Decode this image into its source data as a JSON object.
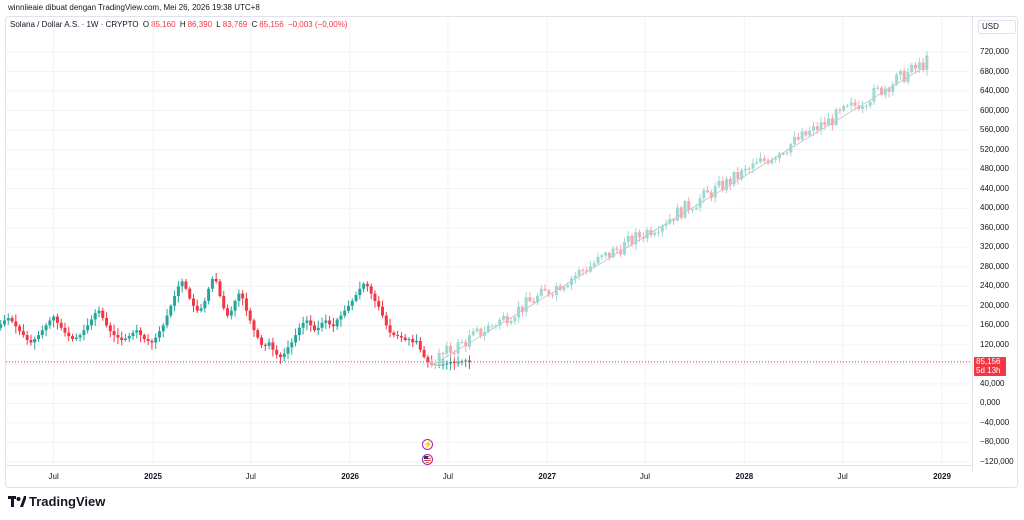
{
  "header": {
    "text": "winniieaie dibuat dengan TradingView.com, Mei 26, 2026 19:38 UTC+8"
  },
  "legend": {
    "symbol": "Solana / Dollar A.S. · 1W · CRYPTO",
    "open_label": "O",
    "open": "85,160",
    "high_label": "H",
    "high": "86,390",
    "low_label": "L",
    "low": "83,769",
    "close_label": "C",
    "close": "85,156",
    "change": "−0,003 (−0,00%)"
  },
  "currency": "USD",
  "price_tag": {
    "price": "85,156",
    "countdown": "5d 13h"
  },
  "colors": {
    "up": "#26a69a",
    "down": "#f23645",
    "projection_up": "#9fd8d2",
    "projection_down": "#f6a8ae",
    "grid": "#f0f3fa"
  },
  "icons": {
    "event_top": "lightning-icon",
    "event_bottom": "us-flag-icon",
    "brand": "tradingview-logo"
  },
  "brand": {
    "name": "TradingView"
  },
  "chart_data": {
    "type": "candlestick",
    "ylim": [
      -120000,
      740000
    ],
    "y_ticks": [
      "720,000",
      "680,000",
      "640,000",
      "600,000",
      "560,000",
      "520,000",
      "480,000",
      "440,000",
      "400,000",
      "360,000",
      "320,000",
      "280,000",
      "240,000",
      "200,000",
      "160,000",
      "120,000",
      "80,000",
      "40,000",
      "0,000",
      "−40,000",
      "−80,000",
      "−120,000"
    ],
    "y_tick_values": [
      720000,
      680000,
      640000,
      600000,
      560000,
      520000,
      480000,
      440000,
      400000,
      360000,
      320000,
      280000,
      240000,
      200000,
      160000,
      120000,
      80000,
      40000,
      0,
      -40000,
      -80000,
      -120000
    ],
    "x_ticks": [
      {
        "label": "Jul",
        "bold": false
      },
      {
        "label": "2025",
        "bold": true
      },
      {
        "label": "Jul",
        "bold": false
      },
      {
        "label": "2026",
        "bold": true
      },
      {
        "label": "Jul",
        "bold": false
      },
      {
        "label": "2027",
        "bold": true
      },
      {
        "label": "Jul",
        "bold": false
      },
      {
        "label": "2028",
        "bold": true
      },
      {
        "label": "Jul",
        "bold": false
      },
      {
        "label": "2029",
        "bold": true
      }
    ],
    "x_tick_dates": [
      "2024-07-01",
      "2025-01-01",
      "2025-07-01",
      "2026-01-01",
      "2026-07-01",
      "2027-01-01",
      "2027-07-01",
      "2028-01-01",
      "2028-07-01",
      "2029-01-01"
    ],
    "historical_start": "2024-02-05",
    "historical_end": "2026-05-25",
    "projection_end": "2028-12-04",
    "historical_closes": [
      160000,
      150000,
      140000,
      135000,
      145000,
      150000,
      155000,
      162000,
      170000,
      175000,
      168000,
      158000,
      148000,
      140000,
      130000,
      125000,
      132000,
      140000,
      150000,
      160000,
      170000,
      178000,
      165000,
      155000,
      145000,
      138000,
      132000,
      135000,
      140000,
      150000,
      160000,
      172000,
      185000,
      190000,
      175000,
      160000,
      148000,
      140000,
      135000,
      130000,
      133000,
      138000,
      145000,
      150000,
      140000,
      132000,
      128000,
      125000,
      135000,
      148000,
      160000,
      180000,
      200000,
      220000,
      240000,
      250000,
      235000,
      215000,
      200000,
      190000,
      195000,
      210000,
      235000,
      255000,
      250000,
      220000,
      195000,
      180000,
      190000,
      210000,
      225000,
      215000,
      190000,
      170000,
      150000,
      135000,
      120000,
      118000,
      125000,
      110000,
      100000,
      95000,
      102000,
      115000,
      125000,
      140000,
      155000,
      165000,
      170000,
      160000,
      150000,
      155000,
      165000,
      170000,
      162000,
      158000,
      172000,
      180000,
      190000,
      200000,
      210000,
      222000,
      235000,
      245000,
      240000,
      225000,
      210000,
      198000,
      180000,
      160000,
      145000,
      140000,
      138000,
      135000,
      130000,
      132000,
      125000,
      128000,
      110000,
      95000,
      85000,
      80000,
      78000,
      79000,
      80000,
      82000,
      85000,
      83000,
      84000,
      86000,
      88000,
      85156
    ],
    "projection_target": 700000
  }
}
